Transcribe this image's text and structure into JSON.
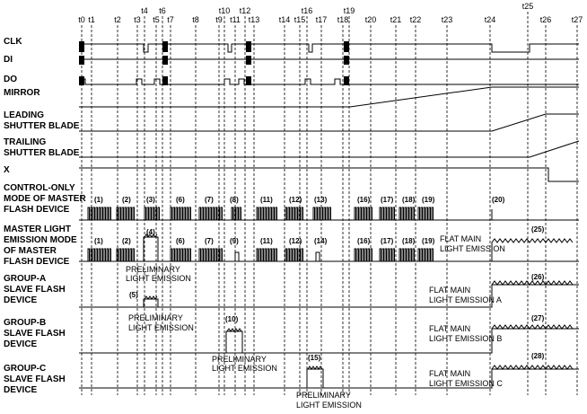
{
  "time_labels": [
    "t0",
    "t1",
    "t2",
    "t3",
    "t4",
    "t5",
    "t6",
    "t7",
    "t8",
    "t9",
    "t10",
    "t11",
    "t12",
    "t13",
    "t14",
    "t15",
    "t16",
    "t17",
    "t18",
    "t19",
    "t20",
    "t21",
    "t22",
    "t23",
    "t24",
    "t25",
    "t26",
    "t27"
  ],
  "signals": {
    "clk": "CLK",
    "di": "DI",
    "do": "DO",
    "mirror": "MIRROR",
    "leading": [
      "LEADING",
      "SHUTTER BLADE"
    ],
    "trailing": [
      "TRAILING",
      "SHUTTER BLADE"
    ],
    "x": "X",
    "control_only": [
      "CONTROL-ONLY",
      "MODE OF MASTER",
      "FLASH DEVICE"
    ],
    "master_emission": [
      "MASTER LIGHT",
      "EMISSION MODE",
      "OF MASTER",
      "FLASH DEVICE"
    ],
    "group_a": [
      "GROUP-A",
      "SLAVE FLASH",
      "DEVICE"
    ],
    "group_b": [
      "GROUP-B",
      "SLAVE FLASH",
      "DEVICE"
    ],
    "group_c": [
      "GROUP-C",
      "SLAVE FLASH",
      "DEVICE"
    ]
  },
  "control_only_labels": [
    "(1)",
    "(2)",
    "(3)",
    "(6)",
    "(7)",
    "(8)",
    "(11)",
    "(12)",
    "(13)",
    "(16)",
    "(17)",
    "(18)",
    "(19)",
    "(20)"
  ],
  "master_labels": [
    "(1)",
    "(2)",
    "(4)",
    "(6)",
    "(7)",
    "(9)",
    "(11)",
    "(12)",
    "(14)",
    "(16)",
    "(17)",
    "(18)",
    "(19)",
    "(25)"
  ],
  "annotations": {
    "flat_main": [
      "FLAT MAIN",
      "LIGHT EMISSION"
    ],
    "flat_a": [
      "FLAT MAIN",
      "LIGHT EMISSION A"
    ],
    "flat_b": [
      "FLAT MAIN",
      "LIGHT EMISSION B"
    ],
    "flat_c": [
      "FLAT MAIN",
      "LIGHT EMISSION C"
    ],
    "prelim": [
      "PRELIMINARY",
      "LIGHT EMISSION"
    ],
    "label_5": "(5)",
    "label_10": "(10)",
    "label_15": "(15)",
    "label_26": "(26)",
    "label_27": "(27)",
    "label_28": "(28)"
  }
}
